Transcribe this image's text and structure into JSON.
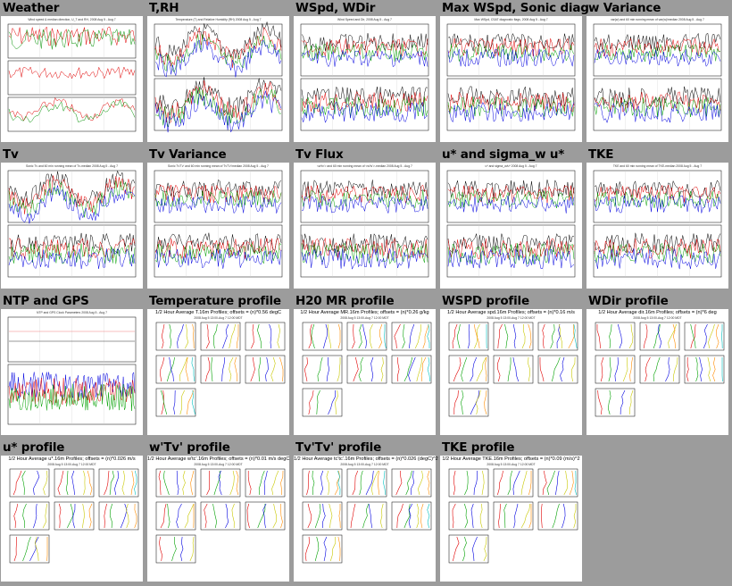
{
  "tiles": [
    {
      "title": "Weather",
      "kind": "ts3",
      "plot_title": "Wind speed & median direction, U_T and RH, 2008 Aug 5 - Aug 7"
    },
    {
      "title": "T,RH",
      "kind": "ts2",
      "plot_title": "Temperature (T) and Relative Humidity (RH) 2008 Aug 5 - Aug 7"
    },
    {
      "title": "WSpd, WDir",
      "kind": "ts2",
      "plot_title": "Wind Speed and Dir, 2008 Aug 5 - Aug 7"
    },
    {
      "title": "Max WSpd, Sonic diag",
      "kind": "ts2",
      "plot_title": "Max WSpd, CSAT diagnostic flags, 2008 Aug 5 - Aug 7"
    },
    {
      "title": "w Variance",
      "kind": "ts2",
      "plot_title": "var(w) and 60 min running mean of var(w)/median 2008 Aug 5 - Aug 7"
    },
    {
      "title": "Tv",
      "kind": "ts2",
      "plot_title": "Sonic Tv and 60 min running mean of Tv-median 2008 Aug 5 - Aug 7"
    },
    {
      "title": "Tv Variance",
      "kind": "ts2",
      "plot_title": "Sonic Tv'Tv' and 60 min running mean of Tv'Tv'/median 2008 Aug 5 - Aug 7"
    },
    {
      "title": "Tv Flux",
      "kind": "ts2",
      "plot_title": "<w'tv'> and 60 min running mean of <w'tv'>-median 2008 Aug 5 - Aug 7"
    },
    {
      "title": "u* and sigma_w u*",
      "kind": "ts2",
      "plot_title": "u* and sigma_w/u* 2008 Aug 5 - Aug 7"
    },
    {
      "title": "TKE",
      "kind": "ts2",
      "plot_title": "TKE and 60 min running mean of TKE-median 2008 Aug 5 - Aug 7"
    },
    {
      "title": "NTP and GPS",
      "kind": "ntp",
      "plot_title": "NTP and GPS Clock Parameters 2008 Aug 5 - Aug 7"
    },
    {
      "title": "Temperature profile",
      "kind": "prof",
      "plot_title": "1/2 Hour Average T.16m Profiles; offsets = (n)*0.56 degC",
      "plot_sub": "2008 Aug 5 13:00-Aug 7 12:00 MDT"
    },
    {
      "title": "H20 MR profile",
      "kind": "prof",
      "plot_title": "1/2 Hour Average MR.16m Profiles; offsets = (n)*0.26 g/kg",
      "plot_sub": "2008 Aug 5 13:00-Aug 7 12:00 MDT"
    },
    {
      "title": "WSPD profile",
      "kind": "prof",
      "plot_title": "1/2 Hour Average spd.16m Profiles; offsets = (n)*0.16 m/s",
      "plot_sub": "2008 Aug 5 13:00-Aug 7 12:00 MDT"
    },
    {
      "title": "WDir profile",
      "kind": "prof",
      "plot_title": "1/2 Hour Average dir.16m Profiles; offsets = (n)*6 deg",
      "plot_sub": "2008 Aug 5 13:00-Aug 7 12:00 MDT"
    },
    {
      "title": "u* profile",
      "kind": "prof",
      "plot_title": "1/2 Hour Average u*.16m Profiles; offsets = (n)*0.026 m/s",
      "plot_sub": "2008 Aug 5 13:00-Aug 7 12:00 MDT"
    },
    {
      "title": "w'Tv' profile",
      "kind": "prof",
      "plot_title": "1/2 Hour Average w'tc'.16m Profiles; offsets = (n)*0.01 m/s degC",
      "plot_sub": "2008 Aug 5 13:00-Aug 7 12:00 MDT"
    },
    {
      "title": "Tv'Tv' profile",
      "kind": "prof",
      "plot_title": "1/2 Hour Average tc'tc'.16m Profiles; offsets = (n)*0.026 (degC)^2",
      "plot_sub": "2008 Aug 5 13:00-Aug 7 12:00 MDT"
    },
    {
      "title": "TKE profile",
      "kind": "prof",
      "plot_title": "1/2 Hour Average TKE.16m Profiles; offsets = (n)*0.09 (m/s)^2",
      "plot_sub": "2008 Aug 5 13:00-Aug 7 12:00 MDT"
    }
  ],
  "colors": {
    "page_bg": "#9c9c9c",
    "series": [
      "#000000",
      "#e00000",
      "#00a000",
      "#0000e0",
      "#c8c800",
      "#ff8c00",
      "#00c0c0"
    ]
  }
}
